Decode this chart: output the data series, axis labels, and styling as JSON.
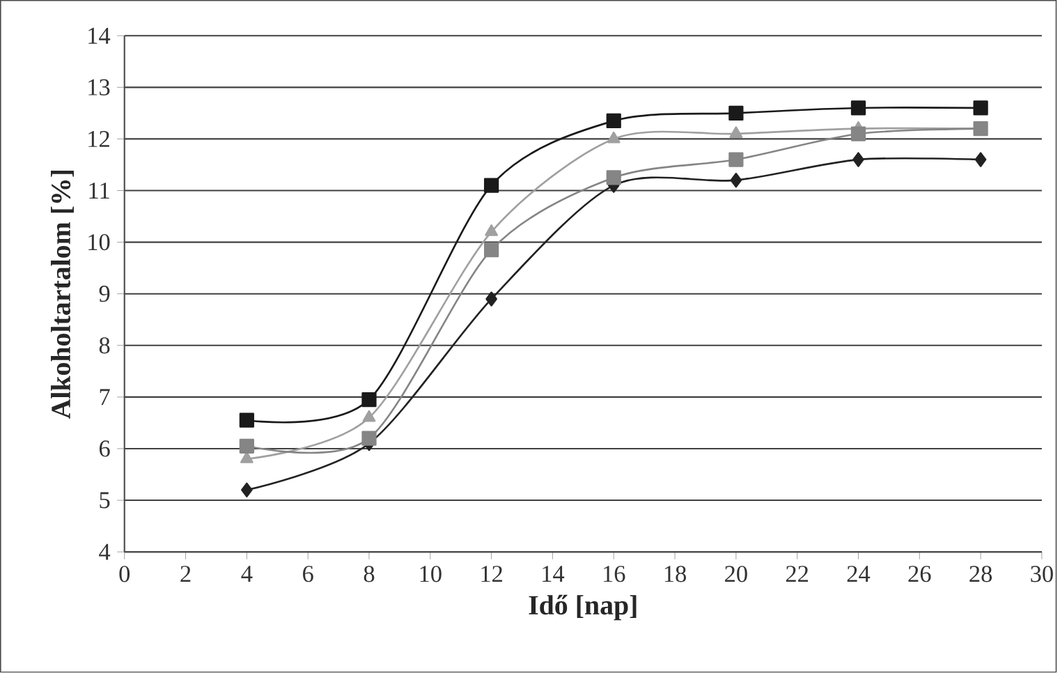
{
  "chart_data": {
    "type": "line",
    "xlabel": "Idő [nap]",
    "ylabel": "Alkoholtartalom [%]",
    "x": [
      4,
      8,
      12,
      16,
      20,
      24,
      28
    ],
    "series": [
      {
        "color": "#222222",
        "marker": "diamond",
        "values": [
          5.2,
          6.1,
          8.9,
          11.1,
          11.2,
          11.6,
          11.6
        ]
      },
      {
        "color": "#1a1a1a",
        "marker": "square",
        "values": [
          6.55,
          6.95,
          11.1,
          12.35,
          12.5,
          12.6,
          12.6
        ]
      },
      {
        "color": "#a0a0a0",
        "marker": "triangle",
        "values": [
          5.8,
          6.6,
          10.2,
          12.0,
          12.1,
          12.2,
          12.2
        ]
      },
      {
        "color": "#858585",
        "marker": "square",
        "values": [
          6.05,
          6.2,
          9.85,
          11.25,
          11.6,
          12.1,
          12.2
        ]
      }
    ],
    "xlim": [
      0,
      30
    ],
    "ylim": [
      4,
      14
    ],
    "xticks": [
      0,
      2,
      4,
      6,
      8,
      10,
      12,
      14,
      16,
      18,
      20,
      22,
      24,
      26,
      28,
      30
    ],
    "yticks": [
      4,
      5,
      6,
      7,
      8,
      9,
      10,
      11,
      12,
      13,
      14
    ],
    "grid": "y",
    "line_style": "solid"
  }
}
